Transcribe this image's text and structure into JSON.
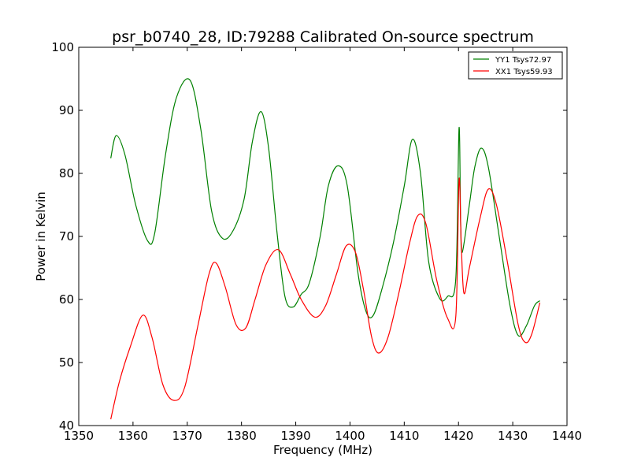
{
  "chart_data": {
    "type": "line",
    "title": "psr_b0740_28, ID:79288 Calibrated On-source spectrum",
    "xlabel": "Frequency (MHz)",
    "ylabel": "Power in Kelvin",
    "xlim": [
      1350,
      1440
    ],
    "ylim": [
      40,
      100
    ],
    "xticks": [
      "1350",
      "1360",
      "1370",
      "1380",
      "1390",
      "1400",
      "1410",
      "1420",
      "1430",
      "1440"
    ],
    "yticks": [
      "40",
      "50",
      "60",
      "70",
      "80",
      "90",
      "100"
    ],
    "grid": false,
    "legend": "top-right",
    "series": [
      {
        "name": "YY1 Tsys72.97",
        "color": "#008000",
        "x": [
          1355.9,
          1356.9,
          1358.5,
          1360.5,
          1362.7,
          1364.0,
          1366.0,
          1368.0,
          1370.5,
          1372.5,
          1374.5,
          1376.5,
          1378.5,
          1380.5,
          1382.0,
          1383.6,
          1385.0,
          1386.5,
          1388.0,
          1389.5,
          1391.0,
          1392.5,
          1394.5,
          1396.0,
          1397.8,
          1399.5,
          1401.5,
          1403.0,
          1404.3,
          1406.0,
          1408.0,
          1410.0,
          1411.5,
          1413.0,
          1414.5,
          1416.5,
          1418.0,
          1419.5,
          1420.1,
          1420.4,
          1420.7,
          1422.0,
          1423.0,
          1424.2,
          1425.5,
          1427.5,
          1429.5,
          1431.0,
          1432.5,
          1434.0,
          1435.0
        ],
        "y": [
          82.4,
          86.0,
          83.0,
          75.0,
          69.3,
          70.5,
          83.0,
          92.0,
          94.8,
          87.0,
          74.0,
          69.7,
          71.0,
          76.0,
          85.0,
          89.8,
          84.0,
          71.0,
          60.5,
          58.8,
          60.8,
          62.6,
          70.0,
          78.0,
          81.2,
          78.0,
          64.0,
          58.0,
          57.5,
          62.0,
          69.0,
          78.0,
          85.4,
          80.0,
          66.0,
          60.2,
          60.5,
          63.3,
          87.2,
          72.0,
          67.5,
          75.0,
          81.0,
          84.0,
          81.0,
          70.0,
          59.0,
          54.3,
          55.8,
          59.0,
          59.8
        ]
      },
      {
        "name": "XX1 Tsys59.93",
        "color": "#ff0000",
        "x": [
          1355.9,
          1357.5,
          1359.5,
          1361.8,
          1363.5,
          1365.5,
          1367.5,
          1369.5,
          1372.0,
          1374.0,
          1375.3,
          1377.0,
          1379.0,
          1380.8,
          1382.5,
          1384.5,
          1386.8,
          1389.0,
          1391.0,
          1393.5,
          1395.5,
          1397.5,
          1399.3,
          1401.0,
          1402.5,
          1404.0,
          1405.3,
          1407.0,
          1409.0,
          1411.0,
          1412.5,
          1414.0,
          1416.0,
          1418.0,
          1419.5,
          1420.1,
          1420.5,
          1421.0,
          1422.0,
          1424.0,
          1425.5,
          1427.0,
          1429.0,
          1431.0,
          1432.3,
          1433.5,
          1435.0
        ],
        "y": [
          41.0,
          47.0,
          52.5,
          57.5,
          54.0,
          46.5,
          44.0,
          46.0,
          56.0,
          64.0,
          65.8,
          62.0,
          56.0,
          55.5,
          60.0,
          65.5,
          67.9,
          64.0,
          60.0,
          57.2,
          59.0,
          64.0,
          68.5,
          67.5,
          61.5,
          54.0,
          51.5,
          54.0,
          61.0,
          69.0,
          73.3,
          72.0,
          63.0,
          57.0,
          57.3,
          79.0,
          69.0,
          61.0,
          65.0,
          73.0,
          77.5,
          75.0,
          66.0,
          56.0,
          53.2,
          54.5,
          59.5
        ]
      }
    ]
  }
}
